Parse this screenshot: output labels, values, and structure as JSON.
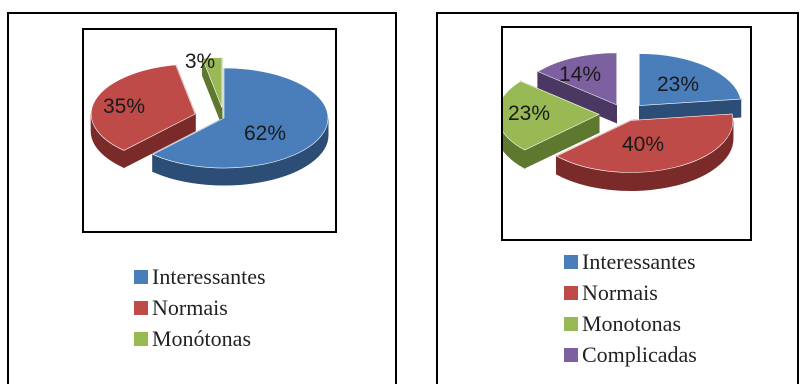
{
  "chart_data": [
    {
      "type": "pie",
      "title": "",
      "categories": [
        "Interessantes",
        "Normais",
        "Monótonas"
      ],
      "values": [
        62,
        35,
        3
      ],
      "data_labels": [
        "62%",
        "35%",
        "3%"
      ],
      "colors": [
        "#4a7ebb",
        "#be4b48",
        "#98b954"
      ],
      "dark_colors": [
        "#2c4d75",
        "#7a2a28",
        "#5e7830"
      ],
      "legend": {
        "position": "bottom",
        "entries": [
          "Interessantes",
          "Normais",
          "Monótonas"
        ]
      },
      "style": "3d-exploded"
    },
    {
      "type": "pie",
      "title": "",
      "categories": [
        "Interessantes",
        "Normais",
        "Monotonas",
        "Complicadas"
      ],
      "values": [
        23,
        40,
        23,
        14
      ],
      "data_labels": [
        "23%",
        "40%",
        "23%",
        "14%"
      ],
      "colors": [
        "#4a7ebb",
        "#be4b48",
        "#98b954",
        "#7d60a0"
      ],
      "dark_colors": [
        "#2c4d75",
        "#7a2a28",
        "#5e7830",
        "#4b3862"
      ],
      "legend": {
        "position": "bottom",
        "entries": [
          "Interessantes",
          "Normais",
          "Monotonas",
          "Complicadas"
        ]
      },
      "style": "3d-exploded"
    }
  ]
}
